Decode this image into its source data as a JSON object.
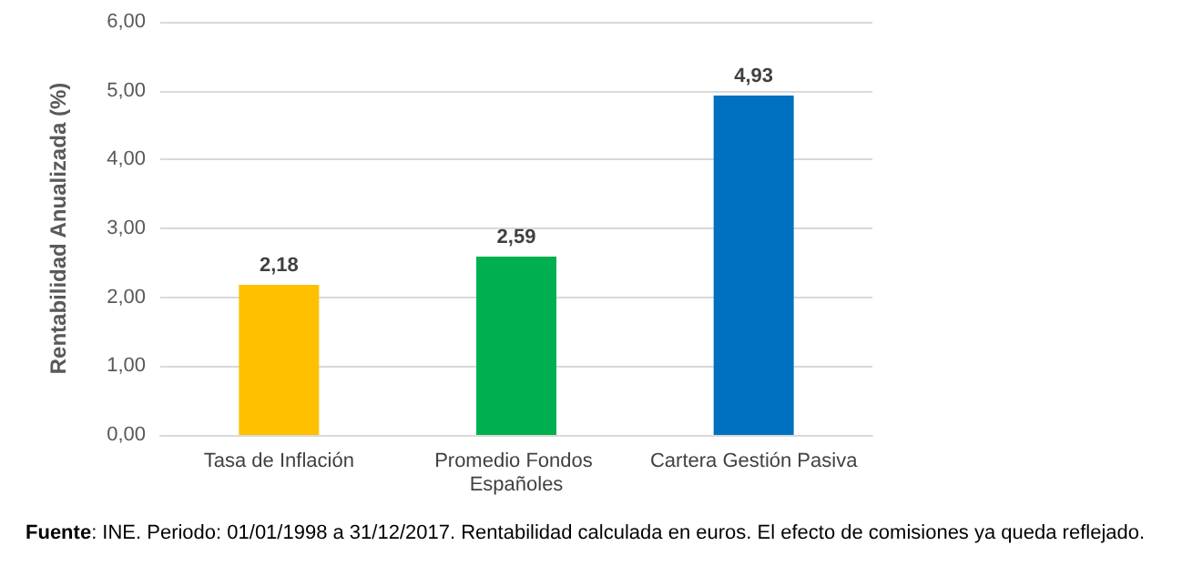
{
  "chart_data": {
    "type": "bar",
    "ylabel": "Rentabilidad Anualizada (%)",
    "categories": [
      "Tasa de Inflación",
      "Promedio Fondos Españoles",
      "Cartera Gestión Pasiva"
    ],
    "values": [
      2.18,
      2.59,
      4.93
    ],
    "colors": [
      "#ffc000",
      "#00b050",
      "#0070c0"
    ],
    "value_labels": [
      "2,18",
      "2,59",
      "4,93"
    ],
    "ylim": [
      0,
      6
    ],
    "yticks": [
      {
        "value": 0,
        "label": "0,00"
      },
      {
        "value": 1,
        "label": "1,00"
      },
      {
        "value": 2,
        "label": "2,00"
      },
      {
        "value": 3,
        "label": "3,00"
      },
      {
        "value": 4,
        "label": "4,00"
      },
      {
        "value": 5,
        "label": "5,00"
      },
      {
        "value": 6,
        "label": "6,00"
      }
    ],
    "grid": "y",
    "annotations": [
      "Fuente: INE. Periodo: 01/01/1998 a 31/12/2017. Rentabilidad calculada en euros. El efecto de comisiones ya queda reflejado."
    ]
  }
}
